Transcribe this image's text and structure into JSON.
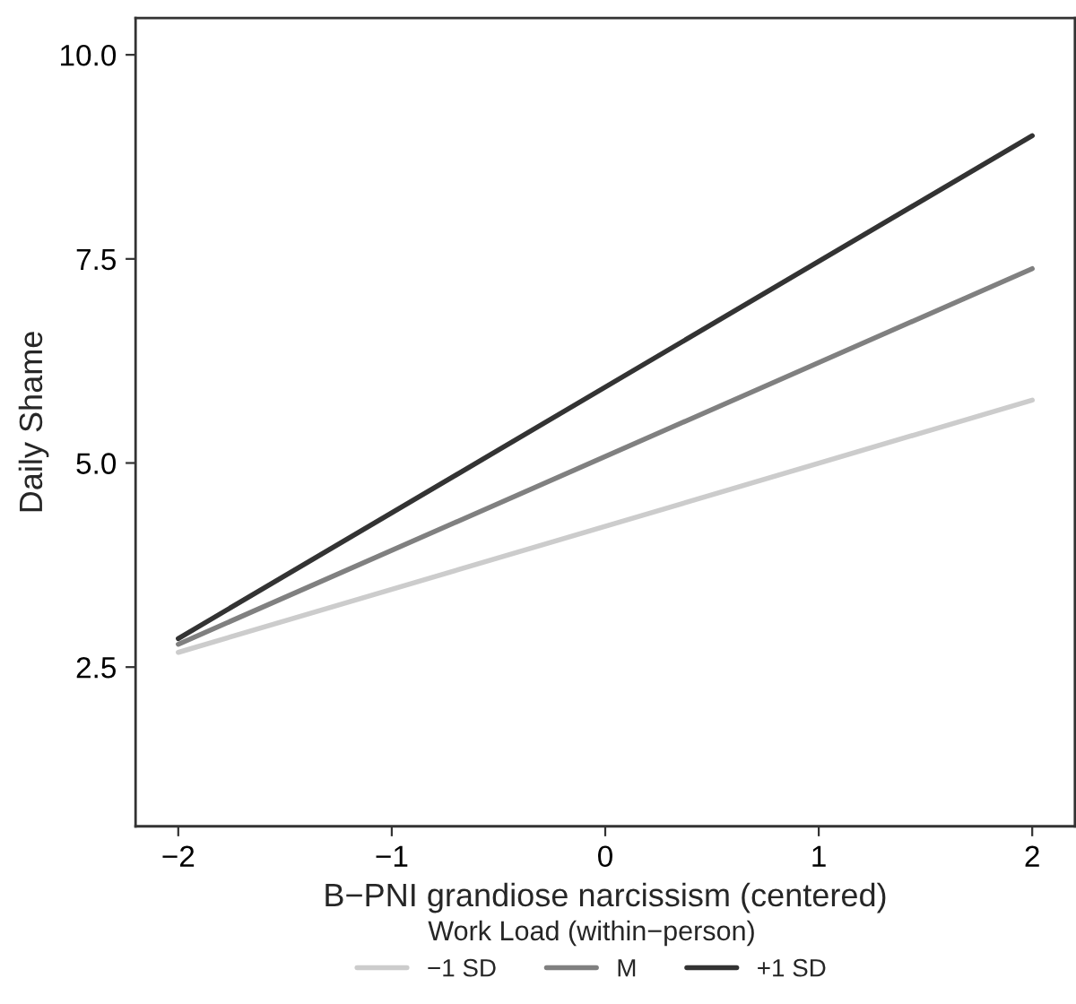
{
  "chart_data": {
    "type": "line",
    "xlabel": "B−PNI grandiose narcissism (centered)",
    "ylabel": "Daily Shame",
    "legend_title": "Work Load (within−person)",
    "x": [
      -2,
      2
    ],
    "series": [
      {
        "name": "−1 SD",
        "color": "#cccccc",
        "values": [
          2.68,
          5.77
        ]
      },
      {
        "name": "M",
        "color": "#808080",
        "values": [
          2.78,
          7.38
        ]
      },
      {
        "name": "+1 SD",
        "color": "#333333",
        "values": [
          2.85,
          9.01
        ]
      }
    ],
    "xlim": [
      -2.2,
      2.2
    ],
    "xticks": [
      {
        "value": -2,
        "label": "−2"
      },
      {
        "value": -1,
        "label": "−1"
      },
      0,
      1,
      2
    ],
    "ylim": [
      0.55,
      10.45
    ],
    "yticks": [
      {
        "value": 2.5,
        "label": "2.5"
      },
      {
        "value": 5,
        "label": "5.0"
      },
      {
        "value": 7.5,
        "label": "7.5"
      },
      {
        "value": 10,
        "label": "10.0"
      }
    ],
    "grid": false,
    "legend": "bottom",
    "marker": "none",
    "line_style": "solid"
  }
}
